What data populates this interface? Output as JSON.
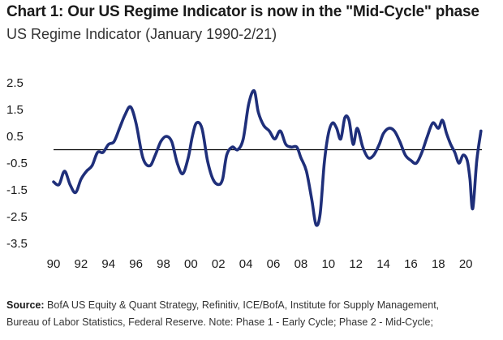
{
  "title": "Chart 1: Our US Regime Indicator is now in the \"Mid-Cycle\" phase",
  "subtitle": "US Regime Indicator (January 1990-2/21)",
  "source": {
    "label": "Source:",
    "line1": "BofA US Equity & Quant Strategy, Refinitiv, ICE/BofA, Institute for Supply Management,",
    "line2": "Bureau of Labor Statistics, Federal Reserve. Note: Phase 1 - Early Cycle; Phase 2 - Mid-Cycle;"
  },
  "chart_data": {
    "type": "line",
    "title": "US Regime Indicator (January 1990-2/21)",
    "xlim": [
      1990,
      2021.17
    ],
    "ylim": [
      -3.5,
      2.5
    ],
    "x_tick_labels": [
      "90",
      "92",
      "94",
      "96",
      "98",
      "00",
      "02",
      "04",
      "06",
      "08",
      "10",
      "12",
      "14",
      "16",
      "18",
      "20"
    ],
    "x_tick_values": [
      1990,
      1992,
      1994,
      1996,
      1998,
      2000,
      2002,
      2004,
      2006,
      2008,
      2010,
      2012,
      2014,
      2016,
      2018,
      2020
    ],
    "y_tick_labels": [
      "2.5",
      "1.5",
      "0.5",
      "-0.5",
      "-1.5",
      "-2.5",
      "-3.5"
    ],
    "y_tick_values": [
      2.5,
      1.5,
      0.5,
      -0.5,
      -1.5,
      -2.5,
      -3.5
    ],
    "zero_line": true,
    "line_color": "#1f2f7a",
    "series": [
      {
        "x": [
          1990.0,
          1990.4,
          1990.8,
          1991.2,
          1991.6,
          1992.0,
          1992.4,
          1992.8,
          1993.2,
          1993.6,
          1994.0,
          1994.4,
          1994.8,
          1995.2,
          1995.6,
          1996.0,
          1996.5,
          1997.0,
          1997.4,
          1997.8,
          1998.2,
          1998.6,
          1999.0,
          1999.4,
          1999.8,
          2000.1,
          2000.4,
          2000.8,
          2001.2,
          2001.6,
          2002.0,
          2002.3,
          2002.6,
          2003.0,
          2003.4,
          2003.8,
          2004.2,
          2004.6,
          2004.9,
          2005.3,
          2005.7,
          2006.1,
          2006.5,
          2006.9,
          2007.3,
          2007.7,
          2008.0,
          2008.4,
          2008.8,
          2009.1,
          2009.4,
          2009.7,
          2010.0,
          2010.3,
          2010.6,
          2010.9,
          2011.2,
          2011.5,
          2011.8,
          2012.1,
          2012.5,
          2012.9,
          2013.3,
          2013.7,
          2014.0,
          2014.4,
          2014.8,
          2015.2,
          2015.6,
          2016.0,
          2016.4,
          2016.8,
          2017.2,
          2017.6,
          2018.0,
          2018.3,
          2018.6,
          2018.9,
          2019.2,
          2019.5,
          2019.8,
          2020.1,
          2020.3,
          2020.5,
          2020.8,
          2021.1
        ],
        "y": [
          -1.2,
          -1.3,
          -0.8,
          -1.3,
          -1.6,
          -1.1,
          -0.8,
          -0.6,
          -0.1,
          -0.1,
          0.2,
          0.3,
          0.8,
          1.3,
          1.6,
          1.0,
          -0.3,
          -0.6,
          -0.2,
          0.3,
          0.5,
          0.3,
          -0.5,
          -0.9,
          -0.3,
          0.5,
          1.0,
          0.8,
          -0.4,
          -1.1,
          -1.3,
          -1.1,
          -0.2,
          0.1,
          0.0,
          0.4,
          1.7,
          2.2,
          1.4,
          0.9,
          0.7,
          0.4,
          0.7,
          0.2,
          0.1,
          0.1,
          -0.3,
          -0.8,
          -1.9,
          -2.8,
          -2.4,
          -0.5,
          0.6,
          1.0,
          0.8,
          0.4,
          1.2,
          1.1,
          0.2,
          0.8,
          0.1,
          -0.3,
          -0.2,
          0.2,
          0.6,
          0.8,
          0.7,
          0.3,
          -0.2,
          -0.4,
          -0.5,
          -0.1,
          0.5,
          1.0,
          0.8,
          1.1,
          0.6,
          0.2,
          -0.1,
          -0.5,
          -0.2,
          -0.4,
          -1.1,
          -2.2,
          -0.4,
          0.7
        ]
      }
    ]
  }
}
